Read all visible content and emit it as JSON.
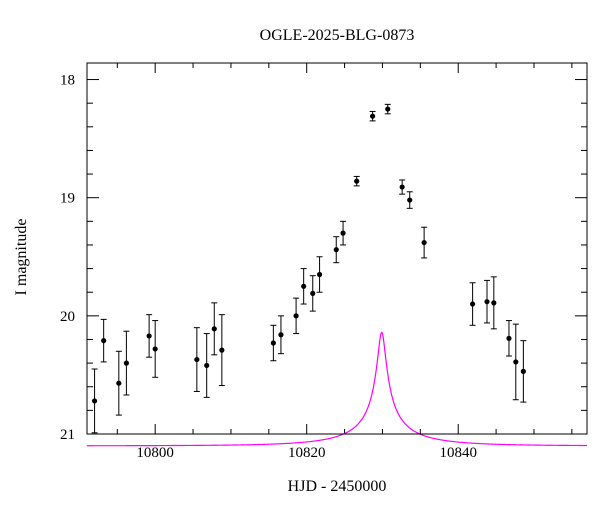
{
  "chart_data": {
    "type": "scatter",
    "title": "OGLE-2025-BLG-0873",
    "xlabel": "HJD - 2450000",
    "ylabel": "I magnitude",
    "xlim": [
      10791,
      10857
    ],
    "ylim": [
      21,
      18
    ],
    "y_inverted": true,
    "x_ticks": [
      10800,
      10820,
      10840
    ],
    "y_ticks": [
      18,
      19,
      20,
      21
    ],
    "grid": false,
    "series": [
      {
        "marker": "filled-circle",
        "color": "#000000",
        "points": [
          {
            "x": 10792.0,
            "y": 20.72,
            "err": 0.27
          },
          {
            "x": 10793.2,
            "y": 20.21,
            "err": 0.18
          },
          {
            "x": 10795.2,
            "y": 20.57,
            "err": 0.27
          },
          {
            "x": 10796.2,
            "y": 20.4,
            "err": 0.27
          },
          {
            "x": 10799.2,
            "y": 20.17,
            "err": 0.18
          },
          {
            "x": 10800.0,
            "y": 20.28,
            "err": 0.24
          },
          {
            "x": 10805.5,
            "y": 20.37,
            "err": 0.27
          },
          {
            "x": 10806.8,
            "y": 20.42,
            "err": 0.27
          },
          {
            "x": 10807.8,
            "y": 20.11,
            "err": 0.22
          },
          {
            "x": 10808.8,
            "y": 20.29,
            "err": 0.3
          },
          {
            "x": 10815.6,
            "y": 20.23,
            "err": 0.15
          },
          {
            "x": 10816.6,
            "y": 20.16,
            "err": 0.16
          },
          {
            "x": 10818.6,
            "y": 20.0,
            "err": 0.15
          },
          {
            "x": 10819.6,
            "y": 19.75,
            "err": 0.15
          },
          {
            "x": 10820.8,
            "y": 19.81,
            "err": 0.15
          },
          {
            "x": 10821.7,
            "y": 19.65,
            "err": 0.15
          },
          {
            "x": 10823.9,
            "y": 19.44,
            "err": 0.11
          },
          {
            "x": 10824.8,
            "y": 19.3,
            "err": 0.1
          },
          {
            "x": 10826.6,
            "y": 18.86,
            "err": 0.04
          },
          {
            "x": 10828.7,
            "y": 18.31,
            "err": 0.04
          },
          {
            "x": 10830.7,
            "y": 18.25,
            "err": 0.04
          },
          {
            "x": 10832.6,
            "y": 18.91,
            "err": 0.06
          },
          {
            "x": 10833.6,
            "y": 19.02,
            "err": 0.07
          },
          {
            "x": 10835.5,
            "y": 19.38,
            "err": 0.13
          },
          {
            "x": 10841.9,
            "y": 19.9,
            "err": 0.18
          },
          {
            "x": 10843.8,
            "y": 19.88,
            "err": 0.18
          },
          {
            "x": 10844.7,
            "y": 19.89,
            "err": 0.22
          },
          {
            "x": 10846.7,
            "y": 20.19,
            "err": 0.15
          },
          {
            "x": 10847.6,
            "y": 20.39,
            "err": 0.32
          },
          {
            "x": 10848.6,
            "y": 20.47,
            "err": 0.26
          }
        ]
      }
    ],
    "model_curve": {
      "color": "#ff00ff",
      "t0": 10829.9,
      "u0": 0.047,
      "tE": 11.2,
      "I_source": 21.1,
      "blend_fraction": 0.07
    }
  }
}
